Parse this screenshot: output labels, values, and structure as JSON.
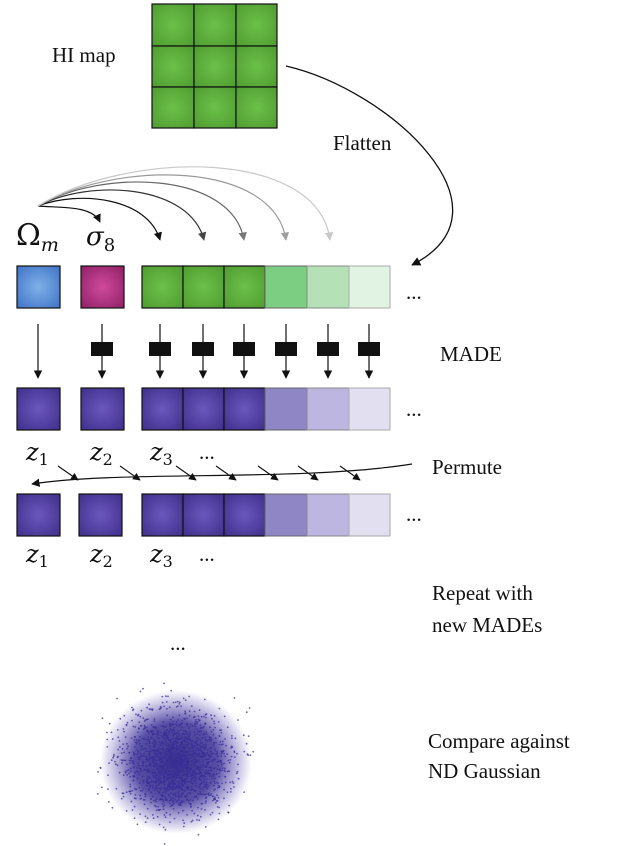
{
  "labels": {
    "hi_map": "HI map",
    "flatten": "Flatten",
    "made": "MADE",
    "permute": "Permute",
    "repeat_line1": "Repeat with",
    "repeat_line2": "new MADEs",
    "compare_line1": "Compare against",
    "compare_line2": "ND Gaussian",
    "ellipsis": "..."
  },
  "params": {
    "omega_base": "Ω",
    "omega_sub": "m",
    "sigma_base": "σ",
    "sigma_sub": "8"
  },
  "latents": {
    "z": "z",
    "subs": [
      "1",
      "2",
      "3"
    ]
  },
  "colors": {
    "grid_green": "#5fae3a",
    "omega_blue": "#5b8fd6",
    "sigma_magenta": "#b0307f",
    "latent_purple": "#4f3f9c",
    "made_block": "#111111"
  }
}
